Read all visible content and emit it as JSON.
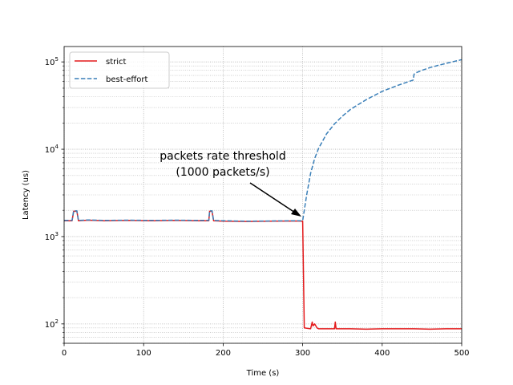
{
  "chart_data": {
    "type": "line",
    "xlabel": "Time (s)",
    "ylabel": "Latency (us)",
    "xlim": [
      0,
      500
    ],
    "ylim": [
      60,
      150000
    ],
    "yscale": "log",
    "grid": "major and minor, dotted",
    "legend_position": "upper-left",
    "x_ticks": [
      "0",
      "100",
      "200",
      "300",
      "400",
      "500"
    ],
    "y_ticks": [
      {
        "base": "10",
        "exp": "2",
        "value": 100
      },
      {
        "base": "10",
        "exp": "3",
        "value": 1000
      },
      {
        "base": "10",
        "exp": "4",
        "value": 10000
      },
      {
        "base": "10",
        "exp": "5",
        "value": 100000
      }
    ],
    "annotation": {
      "line1": "packets rate threshold",
      "line2": "(1000 packets/s)",
      "point": [
        300,
        1600
      ]
    },
    "series": [
      {
        "name": "strict",
        "color": "#e31a1c",
        "dash": "solid",
        "x": [
          0,
          10,
          12,
          13,
          15,
          16,
          18,
          30,
          50,
          80,
          110,
          140,
          170,
          182,
          183,
          185,
          186,
          188,
          200,
          230,
          260,
          290,
          299,
          300,
          302,
          310,
          312,
          313,
          315,
          318,
          320,
          330,
          340,
          341,
          342,
          345,
          360,
          380,
          400,
          420,
          440,
          460,
          480,
          500
        ],
        "y": [
          1520,
          1520,
          1950,
          1950,
          1950,
          1950,
          1520,
          1540,
          1520,
          1530,
          1520,
          1530,
          1520,
          1520,
          1950,
          1950,
          1950,
          1520,
          1500,
          1490,
          1500,
          1510,
          1500,
          1500,
          90,
          88,
          105,
          95,
          100,
          90,
          88,
          88,
          88,
          105,
          88,
          88,
          88,
          87,
          88,
          88,
          88,
          87,
          88,
          88
        ]
      },
      {
        "name": "best-effort",
        "color": "#3a7fb8",
        "dash": "dashed",
        "x": [
          0,
          10,
          12,
          13,
          15,
          16,
          18,
          30,
          50,
          80,
          110,
          140,
          170,
          182,
          183,
          185,
          186,
          188,
          200,
          230,
          260,
          290,
          299,
          300,
          302,
          305,
          310,
          315,
          320,
          330,
          340,
          350,
          360,
          380,
          400,
          420,
          439,
          440,
          441,
          450,
          460,
          470,
          480,
          490,
          500
        ],
        "y": [
          1530,
          1530,
          1970,
          1970,
          1970,
          1970,
          1530,
          1550,
          1530,
          1540,
          1530,
          1540,
          1530,
          1530,
          1970,
          1970,
          1970,
          1530,
          1520,
          1500,
          1510,
          1520,
          1520,
          1520,
          2000,
          3000,
          5300,
          7800,
          10200,
          15000,
          19500,
          24000,
          28500,
          37000,
          46000,
          54000,
          62000,
          72000,
          74000,
          80000,
          86000,
          91000,
          96000,
          101000,
          106000
        ]
      }
    ]
  }
}
